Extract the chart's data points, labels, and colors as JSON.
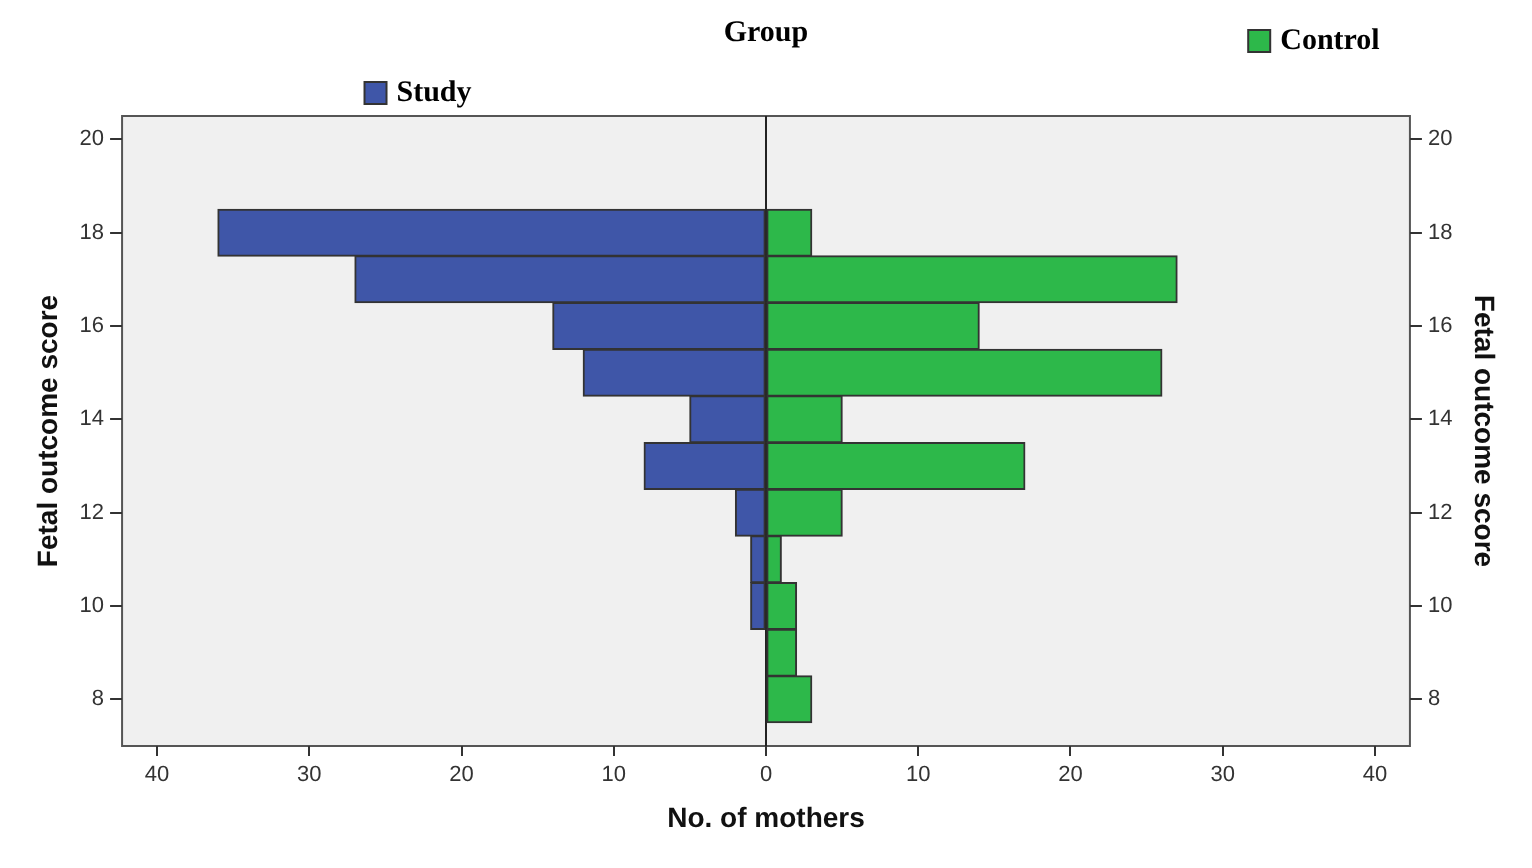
{
  "chart_data": {
    "type": "bar",
    "orientation": "horizontal",
    "stacked": true,
    "legend_title": "Group",
    "legend": "top",
    "x": [
      18,
      17,
      16,
      15,
      14,
      13,
      12,
      11,
      10,
      9,
      8
    ],
    "series": [
      {
        "name": "Study",
        "color": "#3f56a8",
        "values": [
          -36,
          -27,
          -14,
          -12,
          -5,
          -8,
          -2,
          -1,
          -1,
          null,
          null
        ]
      },
      {
        "name": "Control",
        "color": "#2db84a",
        "values": [
          3,
          27,
          14,
          26,
          5,
          17,
          5,
          1,
          2,
          2,
          3
        ]
      }
    ],
    "xlabel": "No. of mothers",
    "ylabel": "Fetal outcome score",
    "y2label": "Fetal outcome score",
    "xlim": [
      -42.3,
      42.3
    ],
    "xticks": [
      {
        "value": -40,
        "label": "40"
      },
      {
        "value": -30,
        "label": "30"
      },
      {
        "value": -20,
        "label": "20"
      },
      {
        "value": -10,
        "label": "10"
      },
      0,
      10,
      20,
      30,
      40
    ],
    "ylim": [
      7,
      20.5
    ],
    "yticks": [
      8,
      10,
      12,
      14,
      16,
      18,
      20
    ],
    "y2lim": [
      7,
      20.5
    ],
    "y2ticks": [
      8,
      10,
      12,
      14,
      16,
      18,
      20
    ]
  }
}
